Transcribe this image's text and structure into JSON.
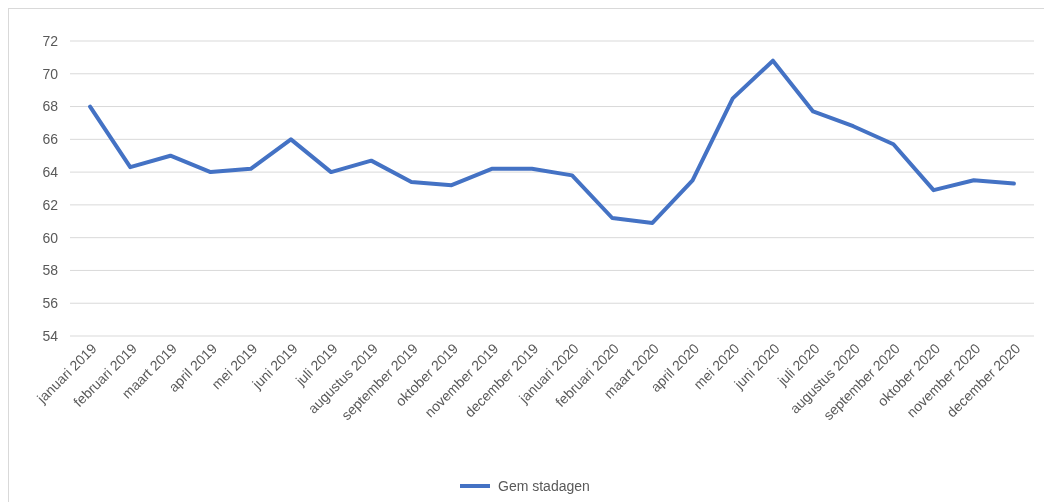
{
  "chart_data": {
    "type": "line",
    "categories": [
      "januari 2019",
      "februari 2019",
      "maart 2019",
      "april 2019",
      "mei 2019",
      "juni 2019",
      "juli 2019",
      "augustus 2019",
      "september 2019",
      "oktober 2019",
      "november 2019",
      "december 2019",
      "januari 2020",
      "februari 2020",
      "maart 2020",
      "april 2020",
      "mei 2020",
      "juni 2020",
      "juli 2020",
      "augustus 2020",
      "september 2020",
      "oktober 2020",
      "november 2020",
      "december 2020"
    ],
    "series": [
      {
        "name": "Gem stadagen",
        "color": "#4472c4",
        "values": [
          68.0,
          64.3,
          65.0,
          64.0,
          64.2,
          66.0,
          64.0,
          64.7,
          63.4,
          63.2,
          64.2,
          64.2,
          63.8,
          61.2,
          60.9,
          63.5,
          68.5,
          70.8,
          67.7,
          66.8,
          65.7,
          62.9,
          63.5,
          63.3
        ]
      }
    ],
    "ylim": [
      54,
      72
    ],
    "yticks": [
      54,
      56,
      58,
      60,
      62,
      64,
      66,
      68,
      70,
      72
    ],
    "grid": "y",
    "legend": "bottom",
    "marker": "none",
    "line_style": "solid"
  }
}
